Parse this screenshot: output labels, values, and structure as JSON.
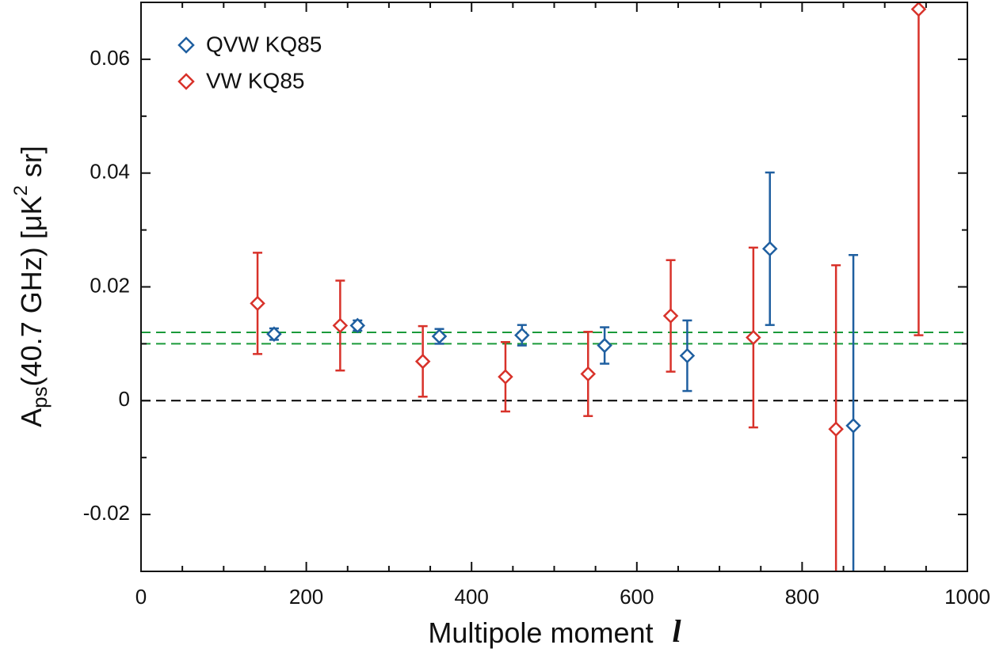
{
  "chart_data": {
    "type": "scatter",
    "xlabel": [
      "Multipole moment",
      "l"
    ],
    "ylabel": [
      "A",
      "ps",
      "(40.7 GHz) [μK",
      "2",
      " sr]"
    ],
    "xlim": [
      0,
      1000
    ],
    "ylim": [
      -0.03,
      0.07
    ],
    "xticks": [
      0,
      200,
      400,
      600,
      800,
      1000
    ],
    "yticks": [
      -0.02,
      0,
      0.02,
      0.04,
      0.06
    ],
    "x_minor_ticks": [
      50,
      100,
      150,
      250,
      300,
      350,
      450,
      500,
      550,
      650,
      700,
      750,
      850,
      900,
      950
    ],
    "y_minor_ticks": [
      -0.03,
      -0.01,
      0.01,
      0.03,
      0.05,
      0.07
    ],
    "legend": "upper left",
    "hlines": [
      {
        "value": 0,
        "color": "#000000"
      },
      {
        "value": 0.012,
        "color": "#1a9a3a"
      },
      {
        "value": 0.01,
        "color": "#1a9a3a"
      }
    ],
    "series": [
      {
        "name": "QVW KQ85",
        "color": "#1f5fa0",
        "x": [
          161,
          262,
          361,
          461,
          561,
          661,
          761,
          862
        ],
        "values": [
          0.0117,
          0.0132,
          0.0113,
          0.0115,
          0.0097,
          0.0079,
          0.0267,
          -0.0044
        ],
        "errors": [
          0.001,
          0.0009,
          0.0013,
          0.0018,
          0.0032,
          0.0062,
          0.0134,
          0.03
        ]
      },
      {
        "name": "VW KQ85",
        "color": "#d8322a",
        "x": [
          141,
          241,
          341,
          441,
          541,
          641,
          741,
          841,
          941
        ],
        "values": [
          0.0171,
          0.0132,
          0.0069,
          0.0042,
          0.0047,
          0.0149,
          0.0111,
          -0.005,
          0.0688
        ],
        "errors": [
          0.0089,
          0.0079,
          0.0062,
          0.0061,
          0.0074,
          0.0098,
          0.0158,
          0.0288,
          0.0573
        ]
      }
    ]
  }
}
